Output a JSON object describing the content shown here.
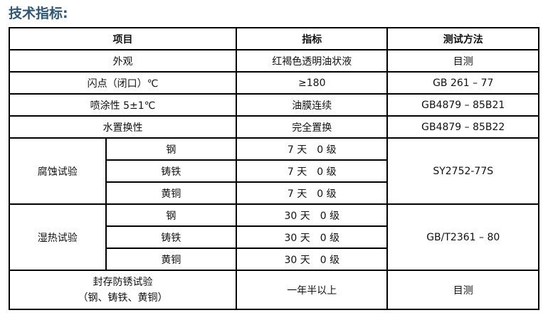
{
  "title": "技术指标:",
  "headers": [
    "项目",
    "指标",
    "测试方法"
  ],
  "rows": [
    {
      "item": "外观",
      "value": "红褐色透明油状液",
      "method": "目测"
    },
    {
      "item": "闪点（闭口）℃",
      "value": "≥180",
      "method": "GB 261 – 77"
    },
    {
      "item": "喷涂性 5±1℃",
      "value": "油膜连续",
      "method": "GB4879 – 85B21"
    },
    {
      "item": "水置换性",
      "value": "完全置换",
      "method": "GB4879 – 85B22"
    }
  ],
  "corrosion": {
    "label": "腐蚀试验",
    "method": "SY2752-77S",
    "items": [
      {
        "metal": "钢",
        "value": "7 天　0 级"
      },
      {
        "metal": "铸铁",
        "value": "7 天　0 级"
      },
      {
        "metal": "黄铜",
        "value": "7 天　0 级"
      }
    ]
  },
  "humidity": {
    "label": "湿热试验",
    "method": "GB/T2361 – 80",
    "items": [
      {
        "metal": "钢",
        "value": "30 天　0 级"
      },
      {
        "metal": "铸铁",
        "value": "30 天　0 级"
      },
      {
        "metal": "黄铜",
        "value": "30 天　0 级"
      }
    ]
  },
  "storage": {
    "label1": "封存防锈试验",
    "label2": "（钢、铸铁、黄铜）",
    "value": "一年半以上",
    "method": "目测"
  }
}
